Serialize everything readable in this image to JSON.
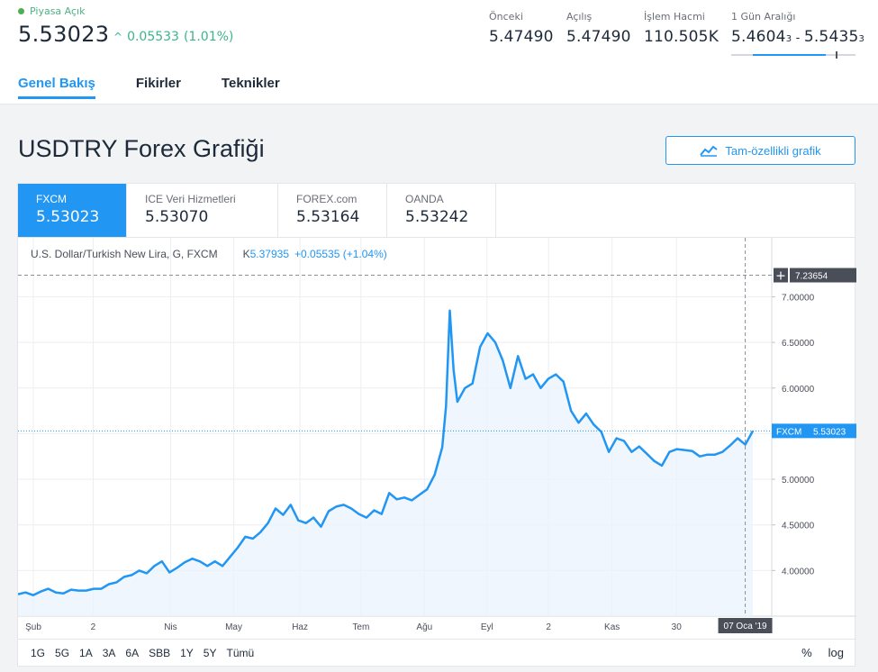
{
  "header": {
    "market_status": "Piyasa Açık",
    "price": "5.53023",
    "change_arrow": "^",
    "change": "0.05533",
    "change_percent": "(1.01%)",
    "stats": [
      {
        "label": "Önceki",
        "value": "5.47490"
      },
      {
        "label": "Açılış",
        "value": "5.47490"
      },
      {
        "label": "İşlem Hacmi",
        "value": "110.505K"
      }
    ],
    "day_range": {
      "label": "1 Gün Aralığı",
      "low_main": "5.4604",
      "low_sub": "3",
      "sep": " - ",
      "high_main": "5.5435",
      "high_sub": "3",
      "position": 0.76
    },
    "tabs": [
      "Genel Bakış",
      "Fikirler",
      "Teknikler"
    ]
  },
  "section": {
    "title": "USDTRY Forex Grafiği",
    "full_chart_button": "Tam-özellikli grafik"
  },
  "providers": [
    {
      "name": "FXCM",
      "value": "5.53023",
      "active": true
    },
    {
      "name": "ICE Veri Hizmetleri",
      "value": "5.53070",
      "active": false
    },
    {
      "name": "FOREX.com",
      "value": "5.53164",
      "active": false
    },
    {
      "name": "OANDA",
      "value": "5.53242",
      "active": false
    }
  ],
  "legend": {
    "symbol": "U.S. Dollar/Turkish New Lira, G, FXCM",
    "k_label": "K",
    "k_value": "5.37935",
    "k_change": "+0.05535 (+1.04%)"
  },
  "range_buttons": [
    "1G",
    "5G",
    "1A",
    "3A",
    "6A",
    "SBB",
    "1Y",
    "5Y",
    "Tümü"
  ],
  "scale_options": [
    "%",
    "log"
  ],
  "chart_data": {
    "type": "area",
    "title": "",
    "y_ticks": [
      "7.00000",
      "6.50000",
      "6.00000",
      "5.50000",
      "5.00000",
      "4.50000",
      "4.00000"
    ],
    "y_tick_values": [
      7.0,
      6.5,
      6.0,
      5.5,
      5.0,
      4.5,
      4.0
    ],
    "ylim": [
      3.5,
      7.37
    ],
    "x_ticks": [
      "Şub",
      "2",
      "Nis",
      "May",
      "Haz",
      "Tem",
      "Ağu",
      "Eyl",
      "2",
      "Kas",
      "30"
    ],
    "x_tick_positions": [
      0.0405,
      0.1984,
      0.4028,
      0.5695,
      0.7444,
      0.9055,
      1.073,
      1.2382,
      1.4007,
      1.5684,
      1.7385
    ],
    "crosshair_label": "07 Oca '19",
    "crosshair_x": 1.92,
    "crosshair_price": "7.23654",
    "crosshair_price_value": 7.23654,
    "current_label": "FXCM",
    "current_price": "5.53023",
    "current_value": 5.53023,
    "xlim": [
      0,
      1.99
    ],
    "series": [
      {
        "values": [
          [
            0.0,
            3.74
          ],
          [
            0.02,
            3.76
          ],
          [
            0.04,
            3.73
          ],
          [
            0.06,
            3.77
          ],
          [
            0.08,
            3.8
          ],
          [
            0.1,
            3.76
          ],
          [
            0.12,
            3.75
          ],
          [
            0.14,
            3.79
          ],
          [
            0.16,
            3.78
          ],
          [
            0.18,
            3.78
          ],
          [
            0.2,
            3.8
          ],
          [
            0.22,
            3.8
          ],
          [
            0.24,
            3.85
          ],
          [
            0.26,
            3.87
          ],
          [
            0.28,
            3.93
          ],
          [
            0.3,
            3.95
          ],
          [
            0.32,
            4.0
          ],
          [
            0.34,
            3.97
          ],
          [
            0.36,
            4.05
          ],
          [
            0.38,
            4.1
          ],
          [
            0.4,
            3.98
          ],
          [
            0.42,
            4.03
          ],
          [
            0.44,
            4.09
          ],
          [
            0.46,
            4.13
          ],
          [
            0.48,
            4.1
          ],
          [
            0.5,
            4.05
          ],
          [
            0.52,
            4.1
          ],
          [
            0.54,
            4.05
          ],
          [
            0.56,
            4.15
          ],
          [
            0.58,
            4.25
          ],
          [
            0.6,
            4.37
          ],
          [
            0.62,
            4.35
          ],
          [
            0.64,
            4.42
          ],
          [
            0.66,
            4.52
          ],
          [
            0.68,
            4.68
          ],
          [
            0.7,
            4.61
          ],
          [
            0.72,
            4.72
          ],
          [
            0.74,
            4.55
          ],
          [
            0.76,
            4.52
          ],
          [
            0.78,
            4.58
          ],
          [
            0.8,
            4.48
          ],
          [
            0.82,
            4.65
          ],
          [
            0.84,
            4.7
          ],
          [
            0.86,
            4.72
          ],
          [
            0.88,
            4.68
          ],
          [
            0.9,
            4.62
          ],
          [
            0.92,
            4.58
          ],
          [
            0.94,
            4.66
          ],
          [
            0.96,
            4.62
          ],
          [
            0.98,
            4.85
          ],
          [
            1.0,
            4.78
          ],
          [
            1.02,
            4.8
          ],
          [
            1.04,
            4.77
          ],
          [
            1.06,
            4.83
          ],
          [
            1.08,
            4.89
          ],
          [
            1.1,
            5.05
          ],
          [
            1.12,
            5.35
          ],
          [
            1.13,
            5.8
          ],
          [
            1.14,
            6.85
          ],
          [
            1.15,
            6.2
          ],
          [
            1.16,
            5.85
          ],
          [
            1.18,
            6.0
          ],
          [
            1.2,
            6.05
          ],
          [
            1.22,
            6.45
          ],
          [
            1.24,
            6.6
          ],
          [
            1.26,
            6.5
          ],
          [
            1.28,
            6.3
          ],
          [
            1.3,
            6.0
          ],
          [
            1.32,
            6.35
          ],
          [
            1.34,
            6.1
          ],
          [
            1.36,
            6.15
          ],
          [
            1.38,
            6.0
          ],
          [
            1.4,
            6.1
          ],
          [
            1.42,
            6.15
          ],
          [
            1.44,
            6.07
          ],
          [
            1.46,
            5.75
          ],
          [
            1.48,
            5.62
          ],
          [
            1.5,
            5.72
          ],
          [
            1.52,
            5.6
          ],
          [
            1.54,
            5.52
          ],
          [
            1.56,
            5.3
          ],
          [
            1.58,
            5.45
          ],
          [
            1.6,
            5.42
          ],
          [
            1.62,
            5.3
          ],
          [
            1.64,
            5.36
          ],
          [
            1.66,
            5.28
          ],
          [
            1.68,
            5.2
          ],
          [
            1.7,
            5.15
          ],
          [
            1.72,
            5.3
          ],
          [
            1.74,
            5.33
          ],
          [
            1.76,
            5.32
          ],
          [
            1.78,
            5.31
          ],
          [
            1.8,
            5.25
          ],
          [
            1.82,
            5.27
          ],
          [
            1.84,
            5.27
          ],
          [
            1.86,
            5.3
          ],
          [
            1.88,
            5.37
          ],
          [
            1.9,
            5.45
          ],
          [
            1.92,
            5.38
          ],
          [
            1.94,
            5.53
          ]
        ]
      }
    ]
  },
  "colors": {
    "accent": "#2196f3",
    "positive": "#3cb48a",
    "line": "#2196f3",
    "fill": "#eaf3fc"
  }
}
